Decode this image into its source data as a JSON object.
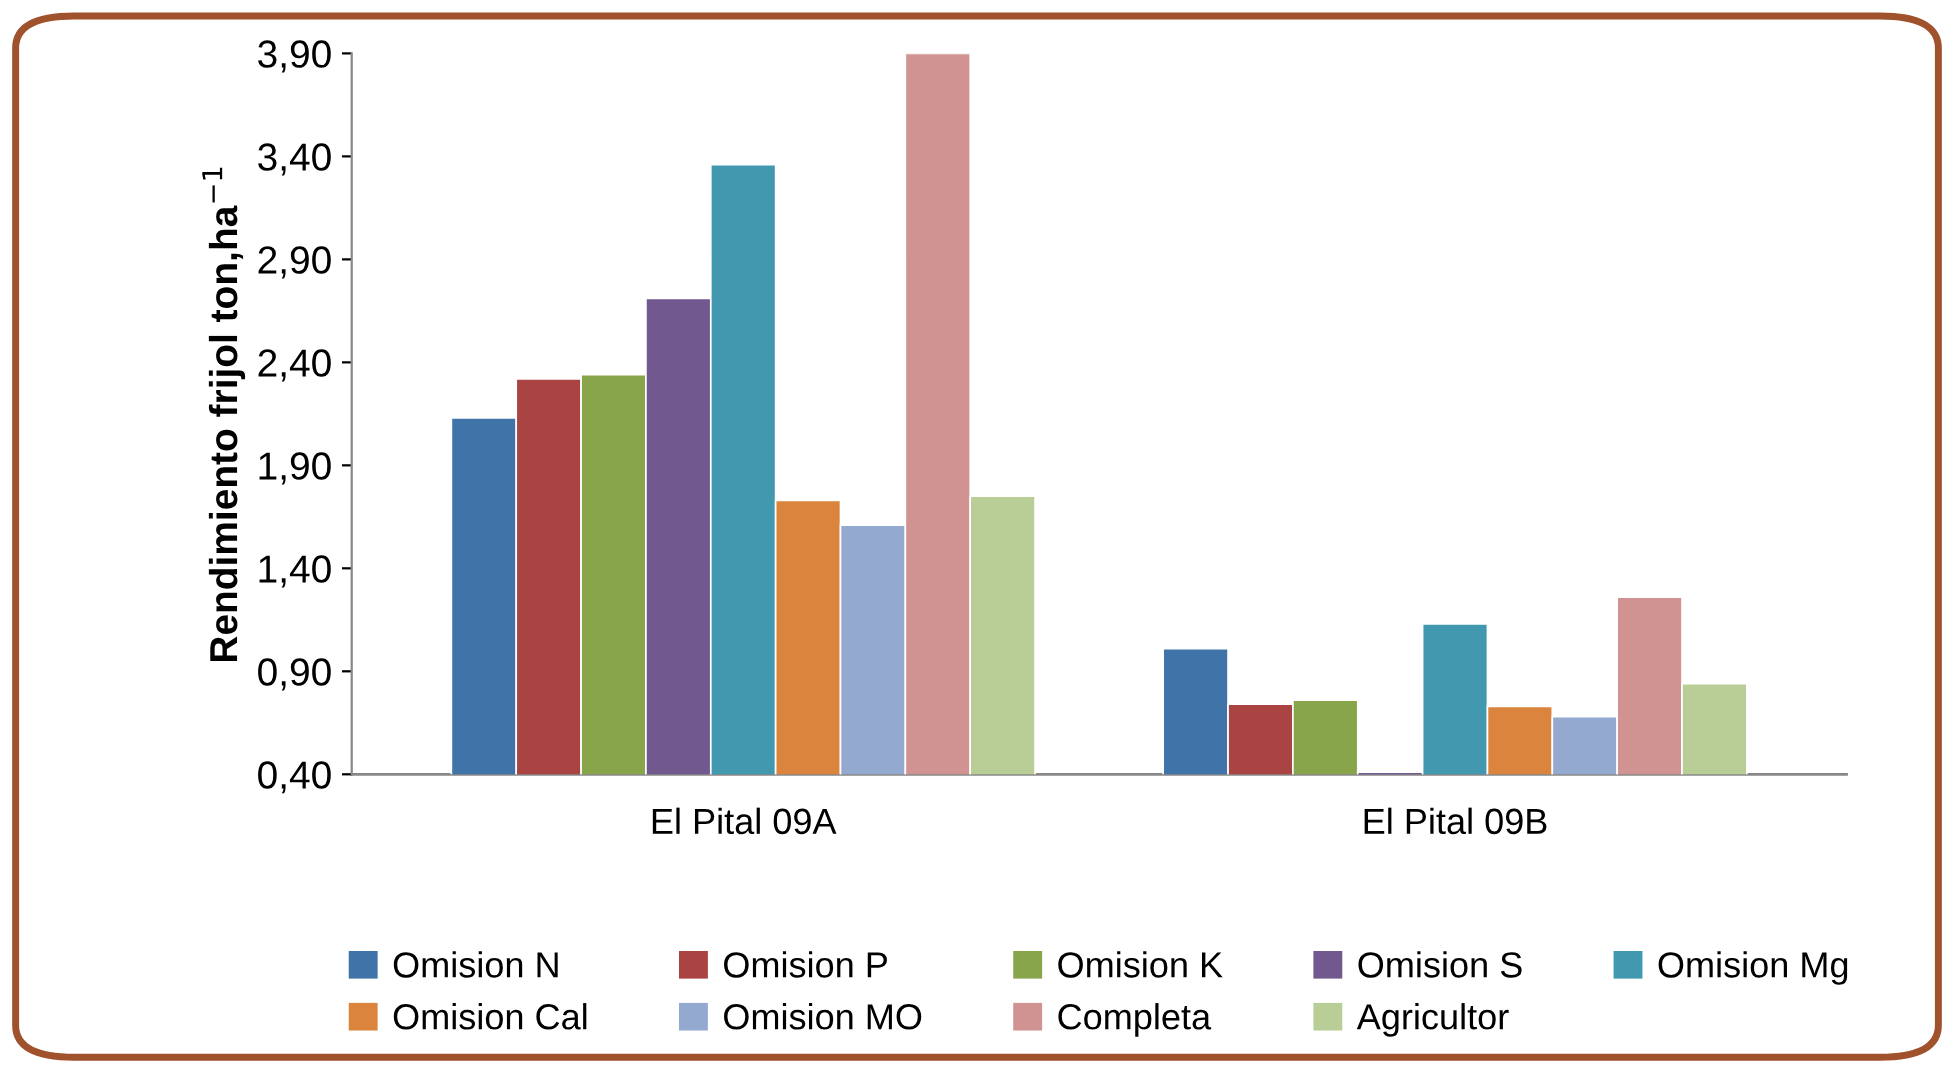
{
  "chart_data": {
    "type": "bar",
    "ylabel": "Rendimiento frijol ton,ha$^{−1}$",
    "categories": [
      "El Pital 09A",
      "El Pital 09B"
    ],
    "series": [
      {
        "name": "Omision N",
        "color": "#4073a8",
        "values": [
          2.13,
          1.01
        ]
      },
      {
        "name": "Omision P",
        "color": "#aa4442",
        "values": [
          2.32,
          0.74
        ]
      },
      {
        "name": "Omision K",
        "color": "#89a54c",
        "values": [
          2.34,
          0.76
        ]
      },
      {
        "name": "Omision S",
        "color": "#71588f",
        "values": [
          2.71,
          0.41
        ]
      },
      {
        "name": "Omision Mg",
        "color": "#4198af",
        "values": [
          3.36,
          1.13
        ]
      },
      {
        "name": "Omision Cal",
        "color": "#db843d",
        "values": [
          1.73,
          0.73
        ]
      },
      {
        "name": "Omision MO",
        "color": "#93a9cf",
        "values": [
          1.61,
          0.68
        ]
      },
      {
        "name": "Completa",
        "color": "#d09392",
        "values": [
          3.9,
          1.26
        ]
      },
      {
        "name": "Agricultor",
        "color": "#b9cd96",
        "values": [
          1.75,
          0.84
        ]
      }
    ],
    "ylim": [
      0.4,
      3.9
    ],
    "yticks": [
      {
        "value": 0.4,
        "label": "0,40"
      },
      {
        "value": 0.9,
        "label": "0,90"
      },
      {
        "value": 1.4,
        "label": "1,40"
      },
      {
        "value": 1.9,
        "label": "1,90"
      },
      {
        "value": 2.4,
        "label": "2,40"
      },
      {
        "value": 2.9,
        "label": "2,90"
      },
      {
        "value": 3.4,
        "label": "3,40"
      },
      {
        "value": 3.9,
        "label": "3,90"
      }
    ],
    "grid": false,
    "legend": "bottom"
  }
}
